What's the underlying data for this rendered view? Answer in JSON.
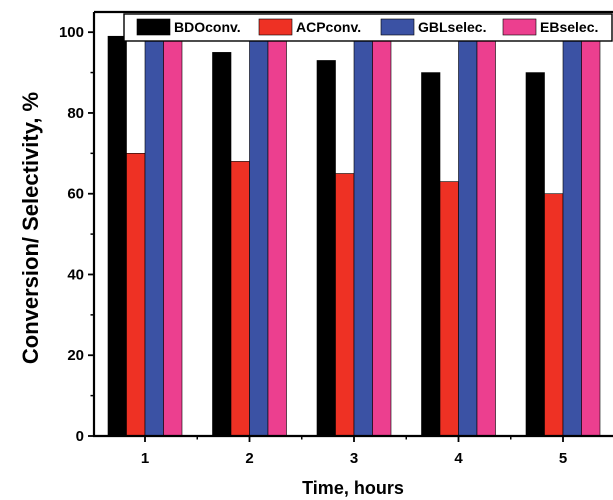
{
  "chart_data": {
    "type": "bar",
    "title": "",
    "xlabel": "Time, hours",
    "ylabel": "Conversion/ Selectivity, %",
    "categories": [
      "1",
      "2",
      "3",
      "4",
      "5"
    ],
    "ylim": [
      0,
      105
    ],
    "yticks": [
      0,
      20,
      40,
      60,
      80,
      100
    ],
    "grid": false,
    "legend_position": "top",
    "series": [
      {
        "name": "BDOconv.",
        "color": "#000000",
        "values": [
          99,
          95,
          93,
          90,
          90
        ]
      },
      {
        "name": "ACPconv.",
        "color": "#ee3124",
        "values": [
          70,
          68,
          65,
          63,
          60
        ]
      },
      {
        "name": "GBLselec.",
        "color": "#3b52a4",
        "values": [
          99,
          99,
          99,
          99,
          99
        ]
      },
      {
        "name": "EBselec.",
        "color": "#ec3f8f",
        "values": [
          99,
          99,
          99,
          99,
          99
        ]
      }
    ]
  }
}
